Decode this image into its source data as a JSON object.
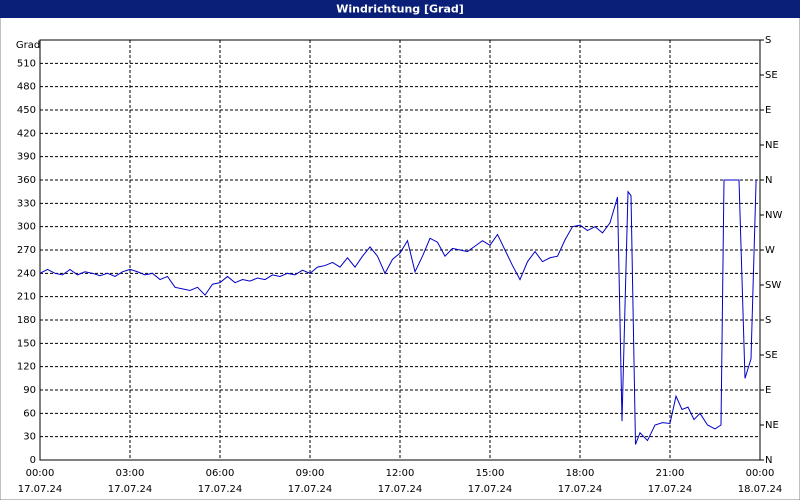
{
  "chart_data": {
    "type": "line",
    "title": "Windrichtung [Grad]",
    "y_label": "Grad",
    "xlim": [
      0,
      24
    ],
    "xticks": [
      {
        "value": 0,
        "label": "00:00"
      },
      {
        "value": 3,
        "label": "03:00"
      },
      {
        "value": 6,
        "label": "06:00"
      },
      {
        "value": 9,
        "label": "09:00"
      },
      {
        "value": 12,
        "label": "12:00"
      },
      {
        "value": 15,
        "label": "15:00"
      },
      {
        "value": 18,
        "label": "18:00"
      },
      {
        "value": 21,
        "label": "21:00"
      },
      {
        "value": 24,
        "label": "00:00"
      }
    ],
    "xtick_dates": [
      "17.07.24",
      "17.07.24",
      "17.07.24",
      "17.07.24",
      "17.07.24",
      "17.07.24",
      "17.07.24",
      "17.07.24",
      "18.07.24"
    ],
    "ylim": [
      0,
      540
    ],
    "yticks": [
      0,
      30,
      60,
      90,
      120,
      150,
      180,
      210,
      240,
      270,
      300,
      330,
      360,
      390,
      420,
      450,
      480,
      510
    ],
    "y2lim": [
      0,
      540
    ],
    "y2ticks": [
      {
        "value": 0,
        "label": "N"
      },
      {
        "value": 45,
        "label": "NE"
      },
      {
        "value": 90,
        "label": "E"
      },
      {
        "value": 135,
        "label": "SE"
      },
      {
        "value": 180,
        "label": "S"
      },
      {
        "value": 225,
        "label": "SW"
      },
      {
        "value": 270,
        "label": "W"
      },
      {
        "value": 315,
        "label": "NW"
      },
      {
        "value": 360,
        "label": "N"
      },
      {
        "value": 405,
        "label": "NE"
      },
      {
        "value": 450,
        "label": "E"
      },
      {
        "value": 495,
        "label": "SE"
      },
      {
        "value": 540,
        "label": "S"
      }
    ],
    "grid": true,
    "series": [
      {
        "color": "#0000c8",
        "x": [
          0,
          0.25,
          0.5,
          0.75,
          1,
          1.25,
          1.5,
          1.75,
          2,
          2.25,
          2.5,
          2.75,
          3,
          3.25,
          3.5,
          3.75,
          4,
          4.25,
          4.5,
          4.75,
          5,
          5.25,
          5.5,
          5.75,
          6,
          6.25,
          6.5,
          6.75,
          7,
          7.25,
          7.5,
          7.75,
          8,
          8.25,
          8.5,
          8.75,
          9,
          9.25,
          9.5,
          9.75,
          10,
          10.25,
          10.5,
          10.75,
          11,
          11.25,
          11.5,
          11.75,
          12,
          12.25,
          12.5,
          12.75,
          13,
          13.25,
          13.5,
          13.75,
          14,
          14.25,
          14.5,
          14.75,
          15,
          15.25,
          15.5,
          15.75,
          16,
          16.25,
          16.5,
          16.75,
          17,
          17.25,
          17.5,
          17.75,
          18,
          18.25,
          18.5,
          18.75,
          19,
          19.25,
          19.4,
          19.6,
          19.7,
          19.85,
          20,
          20.25,
          20.5,
          20.75,
          21,
          21.2,
          21.4,
          21.6,
          21.8,
          22,
          22.25,
          22.5,
          22.7,
          22.8,
          23.3,
          23.5,
          23.7,
          23.87
        ],
        "values": [
          240,
          245,
          240,
          238,
          245,
          238,
          242,
          240,
          237,
          240,
          236,
          242,
          245,
          242,
          238,
          240,
          232,
          236,
          222,
          220,
          218,
          222,
          212,
          226,
          228,
          236,
          228,
          232,
          230,
          234,
          232,
          238,
          236,
          240,
          238,
          244,
          240,
          248,
          250,
          254,
          248,
          260,
          248,
          262,
          274,
          262,
          240,
          258,
          266,
          282,
          242,
          262,
          285,
          280,
          262,
          272,
          270,
          268,
          275,
          282,
          276,
          290,
          270,
          250,
          232,
          255,
          268,
          255,
          260,
          262,
          283,
          300,
          302,
          295,
          300,
          292,
          305,
          338,
          50,
          345,
          340,
          20,
          35,
          25,
          45,
          48,
          47,
          82,
          65,
          68,
          52,
          60,
          45,
          40,
          45,
          360,
          360,
          105,
          130,
          360
        ]
      }
    ]
  }
}
